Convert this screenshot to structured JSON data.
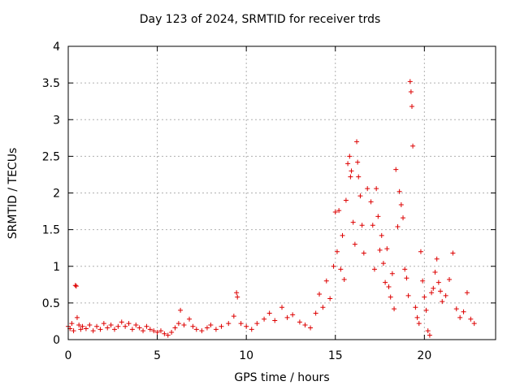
{
  "chart_data": {
    "type": "scatter",
    "title": "Day 123 of 2024, SRMTID for receiver trds",
    "xlabel": "GPS time / hours",
    "ylabel": "SRMTID / TECUs",
    "xlim": [
      0,
      24
    ],
    "ylim": [
      0,
      4
    ],
    "xticks": [
      0,
      5,
      10,
      15,
      20
    ],
    "yticks": [
      0,
      0.5,
      1,
      1.5,
      2,
      2.5,
      3,
      3.5,
      4
    ],
    "ytick_labels": [
      "0",
      "0.5",
      "1",
      "1.5",
      "2",
      "2.5",
      "3",
      "3.5",
      "4"
    ],
    "grid": true,
    "marker": "+",
    "color": "#dd0000",
    "series": [
      {
        "name": "SRMTID",
        "points": [
          [
            0.0,
            0.18
          ],
          [
            0.1,
            0.15
          ],
          [
            0.2,
            0.22
          ],
          [
            0.3,
            0.12
          ],
          [
            0.4,
            0.74
          ],
          [
            0.45,
            0.73
          ],
          [
            0.5,
            0.3
          ],
          [
            0.6,
            0.2
          ],
          [
            0.7,
            0.14
          ],
          [
            0.8,
            0.18
          ],
          [
            1.0,
            0.15
          ],
          [
            1.2,
            0.2
          ],
          [
            1.4,
            0.12
          ],
          [
            1.6,
            0.18
          ],
          [
            1.8,
            0.14
          ],
          [
            2.0,
            0.22
          ],
          [
            2.2,
            0.16
          ],
          [
            2.4,
            0.2
          ],
          [
            2.6,
            0.14
          ],
          [
            2.8,
            0.18
          ],
          [
            3.0,
            0.24
          ],
          [
            3.2,
            0.18
          ],
          [
            3.4,
            0.22
          ],
          [
            3.6,
            0.14
          ],
          [
            3.8,
            0.2
          ],
          [
            4.0,
            0.16
          ],
          [
            4.2,
            0.12
          ],
          [
            4.4,
            0.18
          ],
          [
            4.6,
            0.14
          ],
          [
            4.8,
            0.12
          ],
          [
            5.0,
            0.1
          ],
          [
            5.2,
            0.12
          ],
          [
            5.4,
            0.08
          ],
          [
            5.6,
            0.06
          ],
          [
            5.8,
            0.1
          ],
          [
            6.0,
            0.16
          ],
          [
            6.2,
            0.22
          ],
          [
            6.3,
            0.4
          ],
          [
            6.5,
            0.2
          ],
          [
            6.8,
            0.28
          ],
          [
            7.0,
            0.18
          ],
          [
            7.2,
            0.14
          ],
          [
            7.5,
            0.12
          ],
          [
            7.8,
            0.16
          ],
          [
            8.0,
            0.2
          ],
          [
            8.3,
            0.14
          ],
          [
            8.6,
            0.18
          ],
          [
            9.0,
            0.22
          ],
          [
            9.3,
            0.32
          ],
          [
            9.45,
            0.64
          ],
          [
            9.5,
            0.58
          ],
          [
            9.7,
            0.22
          ],
          [
            10.0,
            0.18
          ],
          [
            10.3,
            0.14
          ],
          [
            10.6,
            0.22
          ],
          [
            11.0,
            0.28
          ],
          [
            11.3,
            0.36
          ],
          [
            11.6,
            0.26
          ],
          [
            12.0,
            0.44
          ],
          [
            12.3,
            0.3
          ],
          [
            12.6,
            0.34
          ],
          [
            13.0,
            0.24
          ],
          [
            13.3,
            0.2
          ],
          [
            13.6,
            0.16
          ],
          [
            13.9,
            0.36
          ],
          [
            14.1,
            0.62
          ],
          [
            14.3,
            0.44
          ],
          [
            14.5,
            0.8
          ],
          [
            14.7,
            0.56
          ],
          [
            14.9,
            1.0
          ],
          [
            15.0,
            1.74
          ],
          [
            15.1,
            1.2
          ],
          [
            15.2,
            1.76
          ],
          [
            15.3,
            0.96
          ],
          [
            15.4,
            1.42
          ],
          [
            15.5,
            0.82
          ],
          [
            15.6,
            1.9
          ],
          [
            15.7,
            2.4
          ],
          [
            15.8,
            2.5
          ],
          [
            15.85,
            2.22
          ],
          [
            15.9,
            2.3
          ],
          [
            16.0,
            1.6
          ],
          [
            16.1,
            1.3
          ],
          [
            16.2,
            2.7
          ],
          [
            16.25,
            2.42
          ],
          [
            16.3,
            2.22
          ],
          [
            16.4,
            1.96
          ],
          [
            16.5,
            1.56
          ],
          [
            16.6,
            1.18
          ],
          [
            16.8,
            2.06
          ],
          [
            17.0,
            1.88
          ],
          [
            17.1,
            1.56
          ],
          [
            17.2,
            0.96
          ],
          [
            17.3,
            2.06
          ],
          [
            17.4,
            1.68
          ],
          [
            17.5,
            1.22
          ],
          [
            17.6,
            1.42
          ],
          [
            17.7,
            1.04
          ],
          [
            17.8,
            0.78
          ],
          [
            17.9,
            1.24
          ],
          [
            18.0,
            0.72
          ],
          [
            18.1,
            0.58
          ],
          [
            18.2,
            0.9
          ],
          [
            18.3,
            0.42
          ],
          [
            18.4,
            2.32
          ],
          [
            18.5,
            1.54
          ],
          [
            18.6,
            2.02
          ],
          [
            18.7,
            1.84
          ],
          [
            18.8,
            1.66
          ],
          [
            18.9,
            0.96
          ],
          [
            19.0,
            0.84
          ],
          [
            19.1,
            0.6
          ],
          [
            19.2,
            3.52
          ],
          [
            19.25,
            3.38
          ],
          [
            19.3,
            3.18
          ],
          [
            19.35,
            2.64
          ],
          [
            19.5,
            0.44
          ],
          [
            19.6,
            0.3
          ],
          [
            19.7,
            0.22
          ],
          [
            19.8,
            1.2
          ],
          [
            19.9,
            0.8
          ],
          [
            20.0,
            0.58
          ],
          [
            20.1,
            0.4
          ],
          [
            20.2,
            0.12
          ],
          [
            20.3,
            0.06
          ],
          [
            20.4,
            0.64
          ],
          [
            20.5,
            0.7
          ],
          [
            20.6,
            0.92
          ],
          [
            20.7,
            1.1
          ],
          [
            20.8,
            0.78
          ],
          [
            20.9,
            0.66
          ],
          [
            21.0,
            0.52
          ],
          [
            21.2,
            0.6
          ],
          [
            21.4,
            0.82
          ],
          [
            21.6,
            1.18
          ],
          [
            21.8,
            0.42
          ],
          [
            22.0,
            0.3
          ],
          [
            22.2,
            0.38
          ],
          [
            22.4,
            0.64
          ],
          [
            22.6,
            0.28
          ],
          [
            22.8,
            0.22
          ]
        ]
      }
    ]
  }
}
